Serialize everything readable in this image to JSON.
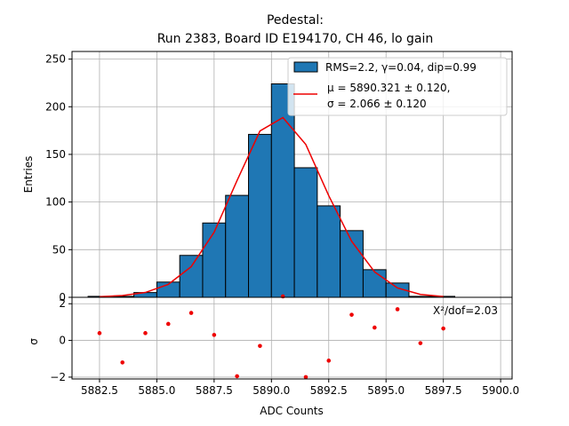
{
  "chart_data": [
    {
      "type": "bar",
      "title_lines": [
        "Pedestal:",
        "Run 2383, Board ID E194170, CH 46, lo gain"
      ],
      "ylabel": "Entries",
      "xlim": [
        5881.3,
        5900.5
      ],
      "ylim": [
        0,
        258
      ],
      "yticks": [
        0,
        50,
        100,
        150,
        200,
        250
      ],
      "grid": true,
      "bin_width": 1,
      "histogram": {
        "name": "RMS=2.2, γ=0.04, dip=0.99",
        "color": "#1f77b4",
        "bin_left_edges": [
          5882,
          5883,
          5884,
          5885,
          5886,
          5887,
          5888,
          5889,
          5890,
          5891,
          5892,
          5893,
          5894,
          5895,
          5896,
          5897
        ],
        "counts": [
          1,
          1,
          5,
          16,
          44,
          78,
          107,
          171,
          224,
          136,
          96,
          70,
          29,
          15,
          1,
          1
        ]
      },
      "fit": {
        "type": "line",
        "color": "#ee0000",
        "name_line1": "μ = 5890.321 ± 0.120,",
        "name_line2": "σ = 2.066 ± 0.120",
        "x": [
          5882.5,
          5883.5,
          5884.5,
          5885.5,
          5886.5,
          5887.5,
          5888.5,
          5889.5,
          5890.5,
          5891.5,
          5892.5,
          5893.5,
          5894.5,
          5895.5,
          5896.5,
          5897.5
        ],
        "y": [
          0.6,
          1.9,
          5.1,
          13.6,
          32.2,
          68.3,
          122.5,
          174.6,
          188.6,
          160.4,
          106.7,
          58.8,
          26.7,
          9.8,
          3.0,
          0.8
        ]
      },
      "legend_position": "top-right"
    },
    {
      "type": "scatter",
      "xlabel": "ADC Counts",
      "ylabel": "σ",
      "xlim": [
        5881.3,
        5900.5
      ],
      "ylim": [
        -2.1,
        2.35
      ],
      "xticks": [
        5882.5,
        5885.0,
        5887.5,
        5890.0,
        5892.5,
        5895.0,
        5897.5,
        5900.0
      ],
      "xtick_labels": [
        "5882.5",
        "5885.0",
        "5887.5",
        "5890.0",
        "5892.5",
        "5895.0",
        "5897.5",
        "5900.0"
      ],
      "yticks": [
        -2,
        0,
        2
      ],
      "ytick_labels": [
        "−2",
        "0",
        "2"
      ],
      "grid": true,
      "color": "#ee0000",
      "points": [
        {
          "x": 5882.5,
          "y": 0.4
        },
        {
          "x": 5883.5,
          "y": -1.2
        },
        {
          "x": 5884.5,
          "y": 0.4
        },
        {
          "x": 5885.5,
          "y": 0.9
        },
        {
          "x": 5886.5,
          "y": 1.5
        },
        {
          "x": 5887.5,
          "y": 0.3
        },
        {
          "x": 5888.5,
          "y": -1.95
        },
        {
          "x": 5889.5,
          "y": -0.3
        },
        {
          "x": 5890.5,
          "y": 2.4
        },
        {
          "x": 5891.5,
          "y": -2.0
        },
        {
          "x": 5892.5,
          "y": -1.1
        },
        {
          "x": 5893.5,
          "y": 1.4
        },
        {
          "x": 5894.5,
          "y": 0.7
        },
        {
          "x": 5895.5,
          "y": 1.7
        },
        {
          "x": 5896.5,
          "y": -0.15
        },
        {
          "x": 5897.5,
          "y": 0.65
        }
      ],
      "annotation": "X²/dof=2.03"
    }
  ]
}
